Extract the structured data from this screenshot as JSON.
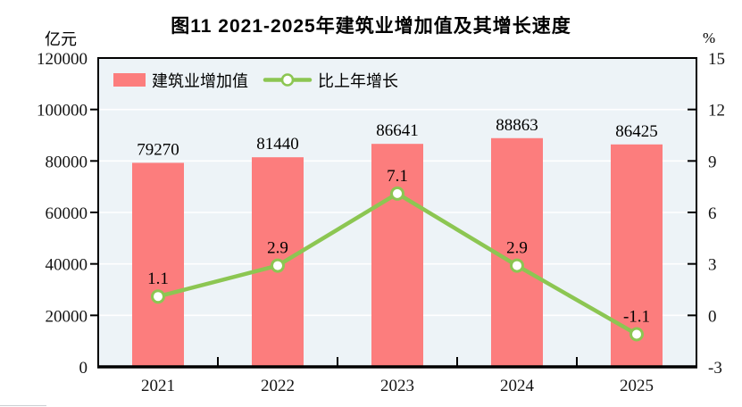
{
  "figure": {
    "title": "图11  2021-2025年建筑业增加值及其增长速度",
    "unit_left": "亿元",
    "unit_right": "%"
  },
  "chart_data": {
    "type": "bar",
    "subtype": "bar-and-line-combo",
    "title": "图11  2021-2025年建筑业增加值及其增长速度",
    "categories": [
      "2021",
      "2022",
      "2023",
      "2024",
      "2025"
    ],
    "series": [
      {
        "name": "建筑业增加值",
        "type": "bar",
        "axis": "left",
        "values": [
          79270,
          81440,
          86641,
          88863,
          86425
        ],
        "labels": [
          "79270",
          "81440",
          "86641",
          "88863",
          "86425"
        ],
        "color": "#fc7d7d"
      },
      {
        "name": "比上年增长",
        "type": "line",
        "axis": "right",
        "values": [
          1.1,
          2.9,
          7.1,
          2.9,
          -1.1
        ],
        "labels": [
          "1.1",
          "2.9",
          "7.1",
          "2.9",
          "-1.1"
        ],
        "color": "#8cc652",
        "marker": {
          "fill": "#ffffff",
          "stroke": "#8cc652"
        }
      }
    ],
    "left_axis": {
      "label": "亿元",
      "min": 0,
      "max": 120000,
      "ticks": [
        0,
        20000,
        40000,
        60000,
        80000,
        100000,
        120000
      ]
    },
    "right_axis": {
      "label": "%",
      "min": -3,
      "max": 15,
      "ticks": [
        -3,
        0,
        3,
        6,
        9,
        12,
        15
      ]
    },
    "legend_position": "top-left",
    "grid": true,
    "colors": {
      "plot_background": "#edf3f7",
      "grid_line": "#ffffff",
      "axis_frame": "#000000",
      "text": "#141414"
    }
  }
}
